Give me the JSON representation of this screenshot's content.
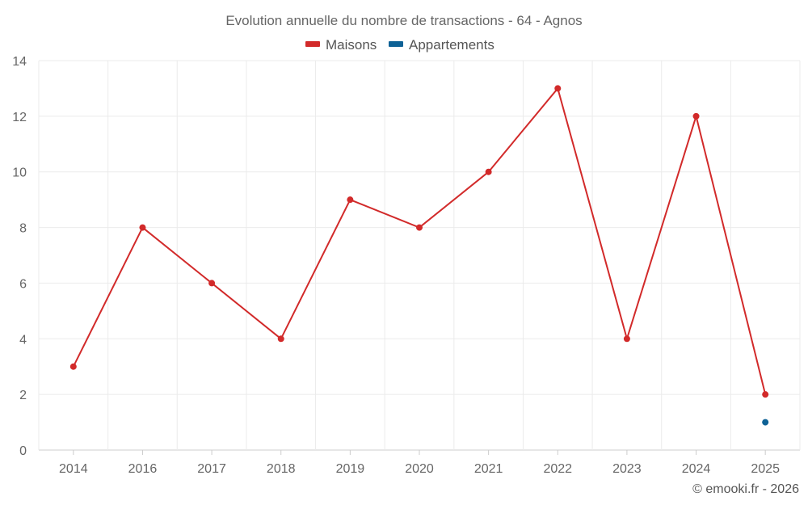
{
  "chart_data": {
    "type": "line",
    "title": "Evolution annuelle du nombre de transactions - 64 - Agnos",
    "xlabel": "",
    "ylabel": "",
    "categories": [
      "2014",
      "2016",
      "2017",
      "2018",
      "2019",
      "2020",
      "2021",
      "2022",
      "2023",
      "2024",
      "2025"
    ],
    "ylim": [
      0,
      14
    ],
    "yticks": [
      0,
      2,
      4,
      6,
      8,
      10,
      12,
      14
    ],
    "grid": true,
    "legend_position": "top-center",
    "series": [
      {
        "name": "Maisons",
        "color": "#d22a2a",
        "values": [
          3,
          8,
          6,
          4,
          9,
          8,
          10,
          13,
          4,
          12,
          2
        ]
      },
      {
        "name": "Appartements",
        "color": "#0e6296",
        "values": [
          null,
          null,
          null,
          null,
          null,
          null,
          null,
          null,
          null,
          null,
          1
        ]
      }
    ]
  },
  "credit": "© emooki.fr - 2026"
}
